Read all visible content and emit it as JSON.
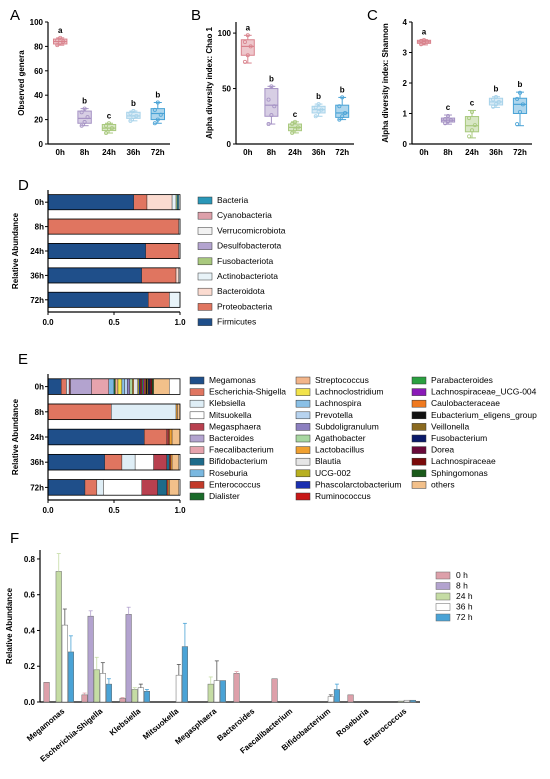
{
  "panels": {
    "a": "A",
    "b": "B",
    "c": "C",
    "d": "D",
    "e": "E",
    "f": "F"
  },
  "chart_data": [
    {
      "type": "box",
      "panel": "A",
      "ylabel": "Observed genera",
      "yticks": [
        0,
        20,
        40,
        60,
        80,
        100
      ],
      "ylim": [
        0,
        100
      ],
      "categories": [
        "0h",
        "8h",
        "24h",
        "36h",
        "72h"
      ],
      "colors": [
        "#d9838d",
        "#a592c4",
        "#a9c97e",
        "#a8d3ea",
        "#4aa3d6"
      ],
      "boxes": [
        {
          "min": 81,
          "q1": 82,
          "median": 84,
          "q3": 86,
          "max": 87,
          "points": [
            81,
            83,
            84,
            85,
            87
          ]
        },
        {
          "min": 15,
          "q1": 17,
          "median": 21,
          "q3": 27,
          "max": 29,
          "points": [
            15,
            18,
            22,
            26,
            29
          ]
        },
        {
          "min": 9,
          "q1": 11,
          "median": 13,
          "q3": 16,
          "max": 17,
          "points": [
            9,
            12,
            13,
            15,
            17
          ]
        },
        {
          "min": 19,
          "q1": 21,
          "median": 23,
          "q3": 26,
          "max": 27,
          "points": [
            19,
            22,
            23,
            25,
            27
          ]
        },
        {
          "min": 17,
          "q1": 20,
          "median": 25,
          "q3": 29,
          "max": 34,
          "points": [
            17,
            20,
            24,
            28,
            34
          ]
        }
      ],
      "letters": [
        "a",
        "b",
        "c",
        "b",
        "b"
      ]
    },
    {
      "type": "box",
      "panel": "B",
      "ylabel": "Alpha diversity index: Chao 1",
      "yticks": [
        0,
        50,
        100
      ],
      "ylim": [
        0,
        110
      ],
      "categories": [
        "0h",
        "8h",
        "24h",
        "36h",
        "72h"
      ],
      "colors": [
        "#d9838d",
        "#a592c4",
        "#a9c97e",
        "#a8d3ea",
        "#4aa3d6"
      ],
      "boxes": [
        {
          "min": 73,
          "q1": 80,
          "median": 88,
          "q3": 94,
          "max": 98,
          "points": [
            74,
            80,
            88,
            92,
            98
          ]
        },
        {
          "min": 18,
          "q1": 25,
          "median": 35,
          "q3": 50,
          "max": 52,
          "points": [
            18,
            26,
            34,
            40,
            52
          ]
        },
        {
          "min": 10,
          "q1": 12,
          "median": 15,
          "q3": 18,
          "max": 20,
          "points": [
            10,
            13,
            15,
            18,
            20
          ]
        },
        {
          "min": 25,
          "q1": 28,
          "median": 31,
          "q3": 34,
          "max": 36,
          "points": [
            25,
            29,
            31,
            33,
            36
          ]
        },
        {
          "min": 22,
          "q1": 24,
          "median": 28,
          "q3": 35,
          "max": 42,
          "points": [
            22,
            25,
            28,
            34,
            42
          ]
        }
      ],
      "letters": [
        "a",
        "b",
        "c",
        "b",
        "b"
      ]
    },
    {
      "type": "box",
      "panel": "C",
      "ylabel": "Alpha diversity index: Shannon",
      "yticks": [
        0,
        1,
        2,
        3,
        4
      ],
      "ylim": [
        0,
        4
      ],
      "categories": [
        "0h",
        "8h",
        "24h",
        "36h",
        "72h"
      ],
      "colors": [
        "#d9838d",
        "#a592c4",
        "#a9c97e",
        "#a8d3ea",
        "#4aa3d6"
      ],
      "boxes": [
        {
          "min": 3.25,
          "q1": 3.3,
          "median": 3.35,
          "q3": 3.4,
          "max": 3.42,
          "points": [
            3.27,
            3.32,
            3.35,
            3.38,
            3.41
          ]
        },
        {
          "min": 0.65,
          "q1": 0.72,
          "median": 0.78,
          "q3": 0.85,
          "max": 0.95,
          "points": [
            0.68,
            0.74,
            0.78,
            0.82,
            0.92
          ]
        },
        {
          "min": 0.2,
          "q1": 0.4,
          "median": 0.6,
          "q3": 0.9,
          "max": 1.1,
          "points": [
            0.25,
            0.45,
            0.62,
            0.85,
            1.05
          ]
        },
        {
          "min": 1.2,
          "q1": 1.28,
          "median": 1.38,
          "q3": 1.5,
          "max": 1.55,
          "points": [
            1.22,
            1.3,
            1.38,
            1.46,
            1.54
          ]
        },
        {
          "min": 0.6,
          "q1": 1.0,
          "median": 1.3,
          "q3": 1.5,
          "max": 1.7,
          "points": [
            0.65,
            1.05,
            1.3,
            1.48,
            1.68
          ]
        }
      ],
      "letters": [
        "a",
        "c",
        "c",
        "b",
        "b"
      ]
    },
    {
      "type": "stacked-bar-horizontal",
      "panel": "D",
      "ylabel": "Relative Abundance",
      "categories": [
        "0h",
        "8h",
        "24h",
        "36h",
        "72h"
      ],
      "xticks": [
        "0.0",
        "0.5",
        "1.0"
      ],
      "series": [
        {
          "name": "Firmicutes",
          "color": "#1f4f8a",
          "values": [
            0.65,
            0,
            0.74,
            0.71,
            0.76
          ]
        },
        {
          "name": "Proteobacteria",
          "color": "#e07560",
          "values": [
            0.1,
            0.99,
            0.25,
            0.26,
            0.16
          ]
        },
        {
          "name": "Bacteroidota",
          "color": "#fbdbd0",
          "values": [
            0.19,
            0,
            0,
            0.02,
            0
          ]
        },
        {
          "name": "Actinobacteriota",
          "color": "#e8f3f8",
          "values": [
            0.03,
            0.01,
            0.01,
            0.01,
            0.08
          ]
        },
        {
          "name": "Fusobacteriota",
          "color": "#a9c97e",
          "values": [
            0.01,
            0,
            0,
            0,
            0
          ]
        },
        {
          "name": "Desulfobacterota",
          "color": "#b3a3cf",
          "values": [
            0,
            0,
            0,
            0,
            0
          ]
        },
        {
          "name": "Verrucomicrobiota",
          "color": "#f2f2f2",
          "values": [
            0,
            0,
            0,
            0,
            0
          ]
        },
        {
          "name": "Cyanobacteria",
          "color": "#dda0aa",
          "values": [
            0,
            0,
            0,
            0,
            0
          ]
        },
        {
          "name": "Bacteria",
          "color": "#2a97b8",
          "values": [
            0.01,
            0,
            0,
            0,
            0
          ]
        }
      ],
      "legend_order": [
        "Bacteria",
        "Cyanobacteria",
        "Verrucomicrobiota",
        "Desulfobacterota",
        "Fusobacteriota",
        "Actinobacteriota",
        "Bacteroidota",
        "Proteobacteria",
        "Firmicutes"
      ]
    },
    {
      "type": "stacked-bar-horizontal",
      "panel": "E",
      "ylabel": "Relative Abundance",
      "categories": [
        "0h",
        "8h",
        "24h",
        "36h",
        "72h"
      ],
      "xticks": [
        "0.0",
        "0.5",
        "1.0"
      ],
      "series": [
        {
          "name": "Megamonas",
          "color": "#1f4f8a",
          "values": [
            0.1,
            0,
            0.73,
            0.43,
            0.28
          ]
        },
        {
          "name": "Escherichia-Shigella",
          "color": "#e07560",
          "values": [
            0.04,
            0.48,
            0.17,
            0.13,
            0.09
          ]
        },
        {
          "name": "Klebsiella",
          "color": "#dfeef6",
          "values": [
            0.02,
            0.49,
            0.0,
            0.1,
            0.05
          ]
        },
        {
          "name": "Mitsuokella",
          "color": "#ffffff",
          "values": [
            0,
            0,
            0,
            0.14,
            0.29
          ]
        },
        {
          "name": "Megasphaera",
          "color": "#b8404f",
          "values": [
            0.01,
            0,
            0.01,
            0.1,
            0.12
          ]
        },
        {
          "name": "Bacteroides",
          "color": "#b3a3cf",
          "values": [
            0.16,
            0,
            0,
            0,
            0
          ]
        },
        {
          "name": "Faecalibacterium",
          "color": "#e6a3ad",
          "values": [
            0.13,
            0,
            0,
            0,
            0
          ]
        },
        {
          "name": "Bifidobacterium",
          "color": "#1e6b8a",
          "values": [
            0,
            0,
            0,
            0.02,
            0.07
          ]
        },
        {
          "name": "Roseburia",
          "color": "#7ab8e0",
          "values": [
            0.04,
            0,
            0,
            0,
            0
          ]
        },
        {
          "name": "Enterococcus",
          "color": "#c23a2a",
          "values": [
            0,
            0,
            0.01,
            0.01,
            0.01
          ]
        },
        {
          "name": "Dialister",
          "color": "#1a6b2a",
          "values": [
            0.01,
            0,
            0,
            0,
            0
          ]
        },
        {
          "name": "Streptococcus",
          "color": "#f2b58a",
          "values": [
            0.02,
            0,
            0,
            0,
            0
          ]
        },
        {
          "name": "Lachnoclostridium",
          "color": "#f2e34a",
          "values": [
            0.03,
            0,
            0,
            0,
            0
          ]
        },
        {
          "name": "Lachnospira",
          "color": "#8ac0e6",
          "values": [
            0.02,
            0,
            0,
            0,
            0
          ]
        },
        {
          "name": "Prevotella",
          "color": "#b7d3ef",
          "values": [
            0.02,
            0,
            0,
            0,
            0
          ]
        },
        {
          "name": "Subdoligranulum",
          "color": "#8c7fc0",
          "values": [
            0.02,
            0,
            0,
            0,
            0
          ]
        },
        {
          "name": "Agathobacter",
          "color": "#a7d7a0",
          "values": [
            0.02,
            0,
            0,
            0,
            0
          ]
        },
        {
          "name": "Lactobacillus",
          "color": "#f0a030",
          "values": [
            0.01,
            0.01,
            0.02,
            0.01,
            0.01
          ]
        },
        {
          "name": "Blautia",
          "color": "#e6e6e6",
          "values": [
            0.03,
            0,
            0,
            0,
            0
          ]
        },
        {
          "name": "UCG-002",
          "color": "#b8b020",
          "values": [
            0.01,
            0,
            0,
            0,
            0
          ]
        },
        {
          "name": "Phascolarctobacterium",
          "color": "#1a2fb0",
          "values": [
            0.01,
            0,
            0,
            0,
            0
          ]
        },
        {
          "name": "Ruminococcus",
          "color": "#c81818",
          "values": [
            0.01,
            0,
            0,
            0,
            0
          ]
        },
        {
          "name": "Parabacteroides",
          "color": "#2aa040",
          "values": [
            0.01,
            0,
            0,
            0,
            0
          ]
        },
        {
          "name": "Lachnospiraceae_UCG-004",
          "color": "#8a1ab8",
          "values": [
            0.01,
            0,
            0,
            0,
            0
          ]
        },
        {
          "name": "Caulobacteraceae",
          "color": "#f07a20",
          "values": [
            0.01,
            0,
            0,
            0,
            0
          ]
        },
        {
          "name": "Eubacterium_eligens_group",
          "color": "#111111",
          "values": [
            0.01,
            0,
            0,
            0,
            0
          ]
        },
        {
          "name": "Veillonella",
          "color": "#8a6a20",
          "values": [
            0.01,
            0,
            0,
            0,
            0
          ]
        },
        {
          "name": "Fusobacterium",
          "color": "#0a1a6a",
          "values": [
            0.01,
            0,
            0,
            0,
            0
          ]
        },
        {
          "name": "Dorea",
          "color": "#6a0a3a",
          "values": [
            0.01,
            0,
            0,
            0,
            0
          ]
        },
        {
          "name": "Lachnospiraceae",
          "color": "#7a0a0a",
          "values": [
            0.01,
            0,
            0,
            0,
            0
          ]
        },
        {
          "name": "Sphingomonas",
          "color": "#1a5a1a",
          "values": [
            0.01,
            0,
            0,
            0,
            0
          ]
        },
        {
          "name": "others",
          "color": "#f2c08a",
          "values": [
            0.12,
            0.02,
            0.06,
            0.05,
            0.07
          ]
        }
      ],
      "legend_columns": [
        [
          "Megamonas",
          "Escherichia-Shigella",
          "Klebsiella",
          "Mitsuokella",
          "Megasphaera",
          "Bacteroides",
          "Faecalibacterium",
          "Bifidobacterium",
          "Roseburia",
          "Enterococcus",
          "Dialister"
        ],
        [
          "Streptococcus",
          "Lachnoclostridium",
          "Lachnospira",
          "Prevotella",
          "Subdoligranulum",
          "Agathobacter",
          "Lactobacillus",
          "Blautia",
          "UCG-002",
          "Phascolarctobacterium",
          "Ruminococcus"
        ],
        [
          "Parabacteroides",
          "Lachnospiraceae_UCG-004",
          "Caulobacteraceae",
          "Eubacterium_eligens_group",
          "Veillonella",
          "Fusobacterium",
          "Dorea",
          "Lachnospiraceae",
          "Sphingomonas",
          "others"
        ]
      ]
    },
    {
      "type": "bar",
      "panel": "F",
      "ylabel": "Relative Abundance",
      "yticks": [
        "0.0",
        "0.2",
        "0.4",
        "0.6",
        "0.8"
      ],
      "ylim": [
        0,
        0.85
      ],
      "categories": [
        "Megamonas",
        "Escherichia-Shigella",
        "Klebsiella",
        "Mitsuokella",
        "Megasphaera",
        "Bacteroides",
        "Faecalibacterium",
        "Bifidobacterium",
        "Roseburia",
        "Enterococcus"
      ],
      "series": [
        {
          "name": "0 h",
          "color": "#dda0aa",
          "values": [
            0.11,
            0.04,
            0.02,
            0.0,
            0.0,
            0.16,
            0.13,
            0.0,
            0.04,
            0.0
          ],
          "errors": [
            0,
            0.01,
            0.005,
            0,
            0,
            0.01,
            0,
            0,
            0,
            0
          ]
        },
        {
          "name": "8 h",
          "color": "#b3a3cf",
          "values": [
            0.0,
            0.48,
            0.49,
            0.0,
            0.0,
            0.0,
            0.0,
            0.0,
            0.0,
            0.0
          ],
          "errors": [
            0,
            0.03,
            0.04,
            0,
            0,
            0,
            0,
            0,
            0,
            0
          ]
        },
        {
          "name": "24 h",
          "color": "#c5dca4",
          "values": [
            0.73,
            0.18,
            0.07,
            0.0,
            0.1,
            0.0,
            0.0,
            0.0,
            0.0,
            0.005
          ],
          "errors": [
            0.1,
            0.07,
            0.01,
            0,
            0.04,
            0,
            0,
            0,
            0,
            0
          ]
        },
        {
          "name": "36 h",
          "color": "#ffffff",
          "values": [
            0.43,
            0.16,
            0.08,
            0.15,
            0.12,
            0.0,
            0.0,
            0.03,
            0.0,
            0.01
          ],
          "errors": [
            0.09,
            0.06,
            0.02,
            0.06,
            0.11,
            0,
            0,
            0.01,
            0,
            0
          ]
        },
        {
          "name": "72 h",
          "color": "#4aa3d6",
          "values": [
            0.28,
            0.1,
            0.06,
            0.31,
            0.12,
            0.0,
            0.0,
            0.07,
            0.0,
            0.01
          ],
          "errors": [
            0.09,
            0.03,
            0.01,
            0.13,
            0.0,
            0,
            0,
            0.03,
            0,
            0
          ]
        }
      ]
    }
  ]
}
